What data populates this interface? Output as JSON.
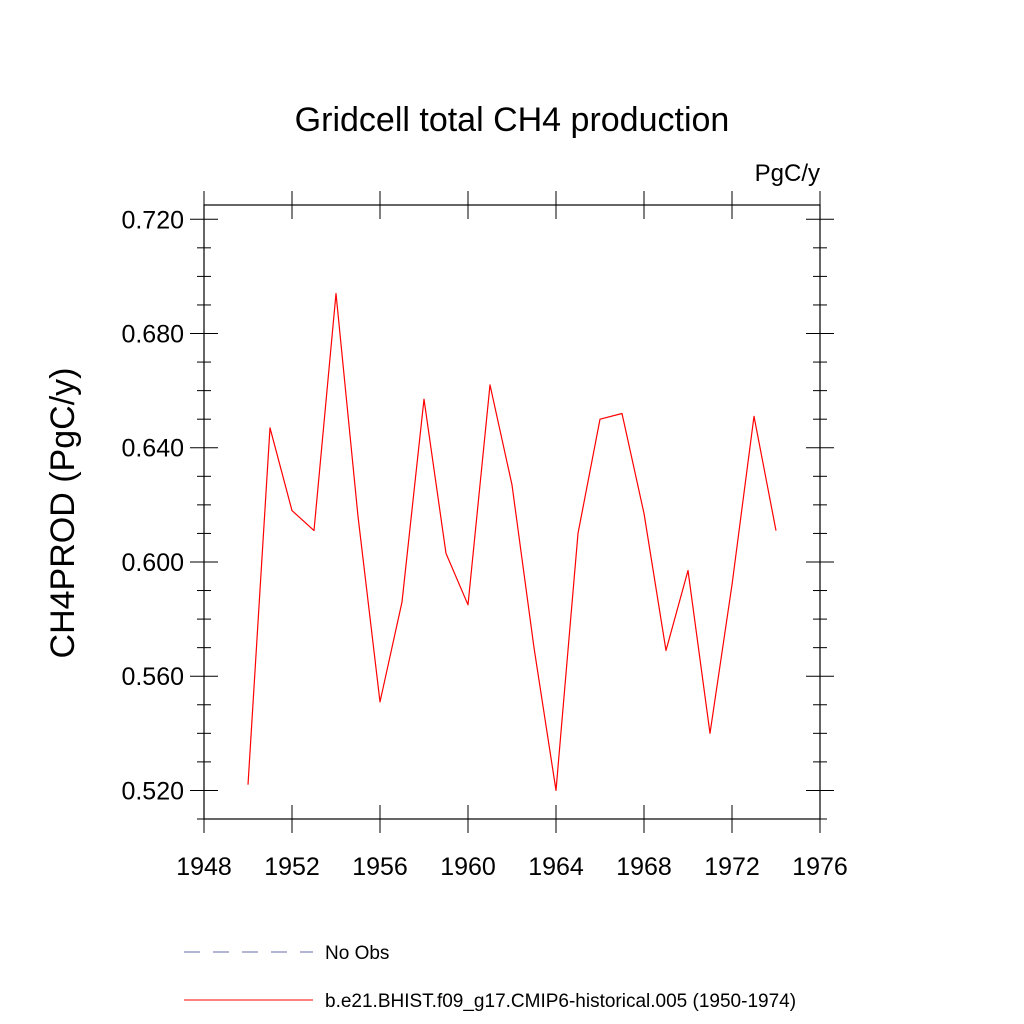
{
  "chart_data": {
    "type": "line",
    "title": "Gridcell total CH4 production",
    "units": "PgC/y",
    "ylabel": "CH4PROD  (PgC/y)",
    "xlabel": "",
    "xlim": [
      1948,
      1976
    ],
    "ylim": [
      0.51,
      0.725
    ],
    "x_ticks": [
      1948,
      1952,
      1956,
      1960,
      1964,
      1968,
      1972,
      1976
    ],
    "y_ticks": [
      0.52,
      0.56,
      0.6,
      0.64,
      0.68,
      0.72
    ],
    "y_tick_labels": [
      "0.520",
      "0.560",
      "0.600",
      "0.640",
      "0.680",
      "0.720"
    ],
    "grid": false,
    "legend_position": "bottom",
    "series": [
      {
        "name": "b.e21.BHIST.f09_g17.CMIP6-historical.005 (1950-1974)",
        "color": "#ff0000",
        "style": "solid",
        "x": [
          1950,
          1951,
          1952,
          1953,
          1954,
          1955,
          1956,
          1957,
          1958,
          1959,
          1960,
          1961,
          1962,
          1963,
          1964,
          1965,
          1966,
          1967,
          1968,
          1969,
          1970,
          1971,
          1972,
          1973,
          1974
        ],
        "y": [
          0.522,
          0.647,
          0.618,
          0.611,
          0.694,
          0.616,
          0.551,
          0.586,
          0.657,
          0.603,
          0.585,
          0.662,
          0.627,
          0.57,
          0.52,
          0.61,
          0.65,
          0.652,
          0.617,
          0.569,
          0.597,
          0.54,
          0.592,
          0.651,
          0.611
        ]
      }
    ],
    "legend": [
      {
        "label": "No Obs",
        "color": "#6a6aa8",
        "style": "dashed"
      },
      {
        "label": "b.e21.BHIST.f09_g17.CMIP6-historical.005 (1950-1974)",
        "color": "#ff0000",
        "style": "solid"
      }
    ]
  }
}
